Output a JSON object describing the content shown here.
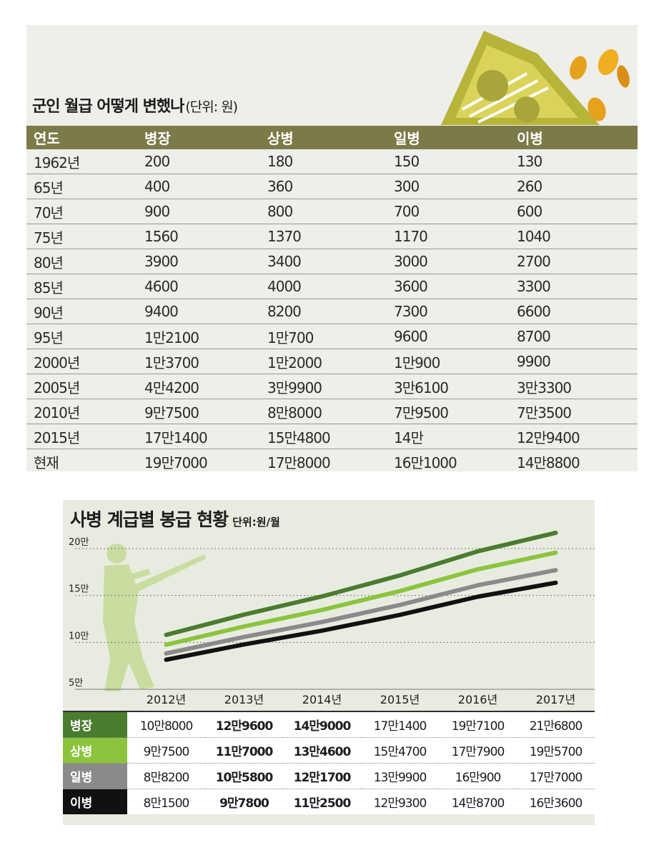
{
  "table1": {
    "title": "군인 월급 어떻게 변했나",
    "unit": "(단위: 원)",
    "headers": [
      "연도",
      "병장",
      "상병",
      "일병",
      "이병"
    ],
    "rows": [
      [
        "1962년",
        "200",
        "180",
        "150",
        "130"
      ],
      [
        "65년",
        "400",
        "360",
        "300",
        "260"
      ],
      [
        "70년",
        "900",
        "800",
        "700",
        "600"
      ],
      [
        "75년",
        "1560",
        "1370",
        "1170",
        "1040"
      ],
      [
        "80년",
        "3900",
        "3400",
        "3000",
        "2700"
      ],
      [
        "85년",
        "4600",
        "4000",
        "3600",
        "3300"
      ],
      [
        "90년",
        "9400",
        "8200",
        "7300",
        "6600"
      ],
      [
        "95년",
        "1만2100",
        "1만700",
        "9600",
        "8700"
      ],
      [
        "2000년",
        "1만3700",
        "1만2000",
        "1만900",
        "9900"
      ],
      [
        "2005년",
        "4만4200",
        "3만9900",
        "3만6100",
        "3만3300"
      ],
      [
        "2010년",
        "9만7500",
        "8만8000",
        "7만9500",
        "7만3500"
      ],
      [
        "2015년",
        "17만1400",
        "15만4800",
        "14만",
        "12만9400"
      ],
      [
        "현재",
        "19만7000",
        "17만8000",
        "16만1000",
        "14만8800"
      ]
    ]
  },
  "chart2": {
    "title": "사병 계급별 봉급 현황",
    "unit": "단위:원/월",
    "y_tick_labels": [
      "20만",
      "15만",
      "10만",
      "5만"
    ],
    "rows": [
      {
        "rank": "병장",
        "values": [
          "10만8000",
          "12만9600",
          "14만9000",
          "17만1400",
          "19만7100",
          "21만6800"
        ]
      },
      {
        "rank": "상병",
        "values": [
          "9만7500",
          "11만7000",
          "13만4600",
          "15만4700",
          "17만7900",
          "19만5700"
        ]
      },
      {
        "rank": "일병",
        "values": [
          "8만8200",
          "10만5800",
          "12만1700",
          "13만9900",
          "16만900",
          "17만7000"
        ]
      },
      {
        "rank": "이병",
        "values": [
          "8만1500",
          "9만7800",
          "11만2500",
          "12만9300",
          "14만8700",
          "16만3600"
        ]
      }
    ]
  },
  "colors": {
    "table_header_bg": "#7c7a48",
    "panel1_bg": "#eeeeea",
    "panel2_bg": "#e8ece0",
    "series": [
      "#4a7c2f",
      "#8cc43e",
      "#8a8a8a",
      "#111111"
    ]
  },
  "chart_data": [
    {
      "type": "table",
      "title": "군인 월급 어떻게 변했나",
      "unit": "(단위: 원)",
      "columns": [
        "연도",
        "병장",
        "상병",
        "일병",
        "이병"
      ],
      "rows": [
        [
          "1962년",
          200,
          180,
          150,
          130
        ],
        [
          "65년",
          400,
          360,
          300,
          260
        ],
        [
          "70년",
          900,
          800,
          700,
          600
        ],
        [
          "75년",
          1560,
          1370,
          1170,
          1040
        ],
        [
          "80년",
          3900,
          3400,
          3000,
          2700
        ],
        [
          "85년",
          4600,
          4000,
          3600,
          3300
        ],
        [
          "90년",
          9400,
          8200,
          7300,
          6600
        ],
        [
          "95년",
          12100,
          10700,
          9600,
          8700
        ],
        [
          "2000년",
          13700,
          12000,
          10900,
          9900
        ],
        [
          "2005년",
          44200,
          39900,
          36100,
          33300
        ],
        [
          "2010년",
          97500,
          88000,
          79500,
          73500
        ],
        [
          "2015년",
          171400,
          154800,
          140000,
          129400
        ],
        [
          "현재",
          197000,
          178000,
          161000,
          148800
        ]
      ]
    },
    {
      "type": "line",
      "title": "사병 계급별 봉급 현황",
      "unit": "단위:원/월",
      "categories": [
        "2012년",
        "2013년",
        "2014년",
        "2015년",
        "2016년",
        "2017년"
      ],
      "ylim": [
        50000,
        200000
      ],
      "yticks": [
        50000,
        100000,
        150000,
        200000
      ],
      "grid": true,
      "series": [
        {
          "name": "병장",
          "values": [
            108000,
            129600,
            149000,
            171400,
            197100,
            216800
          ]
        },
        {
          "name": "상병",
          "values": [
            97500,
            117000,
            134600,
            154700,
            177900,
            195700
          ]
        },
        {
          "name": "일병",
          "values": [
            88200,
            105800,
            121700,
            139900,
            160900,
            177000
          ]
        },
        {
          "name": "이병",
          "values": [
            81500,
            97800,
            112500,
            129300,
            148700,
            163600
          ]
        }
      ]
    }
  ]
}
